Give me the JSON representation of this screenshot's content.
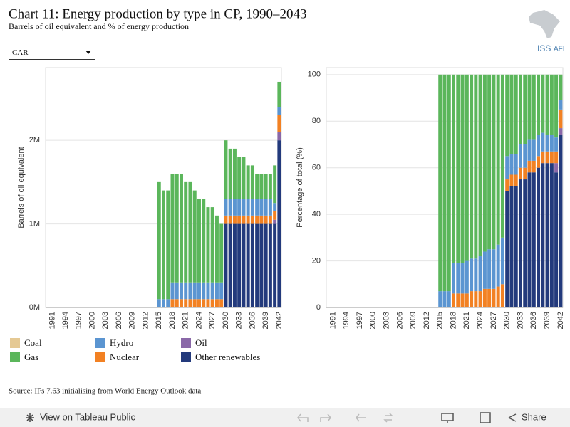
{
  "header": {
    "title": "Chart 11: Energy production by type in CP, 1990–2043",
    "subtitle": "Barrels of oil equivalent and % of energy production",
    "logo": "ISS",
    "logo_suffix": "AFI"
  },
  "filter": {
    "value": "CAR"
  },
  "source": "Source: IFs 7.63 initialising from World Energy Outlook data",
  "footer": {
    "view": "View on Tableau Public",
    "share": "Share"
  },
  "chart_data": [
    {
      "type": "stacked_bar",
      "y_label": "Barrels of oil equivalent",
      "categories": [
        null,
        "1991",
        null,
        null,
        "1994",
        null,
        null,
        "1997",
        null,
        null,
        "2000",
        null,
        null,
        "2003",
        null,
        null,
        "2006",
        null,
        null,
        "2009",
        null,
        null,
        "2012",
        null,
        null,
        "2015",
        null,
        null,
        "2018",
        null,
        null,
        "2021",
        null,
        null,
        "2024",
        null,
        null,
        "2027",
        null,
        null,
        "2030",
        null,
        null,
        "2033",
        null,
        null,
        "2036",
        null,
        null,
        "2039",
        null,
        null,
        "2042"
      ],
      "ylim": [
        0,
        2870000
      ],
      "yticks": [
        {
          "value": 0,
          "label": "0M"
        },
        {
          "value": 1000000,
          "label": "1M"
        },
        {
          "value": 2000000,
          "label": "2M"
        }
      ],
      "grid": true,
      "series": [
        {
          "name": "Coal",
          "color": "#e5c994",
          "values": [
            null,
            null,
            null,
            null,
            null,
            null,
            null,
            null,
            null,
            null,
            null,
            null,
            null,
            null,
            null,
            null,
            null,
            null,
            null,
            null,
            null,
            null,
            null,
            null,
            null,
            0,
            0,
            0,
            0,
            0,
            0,
            0,
            0,
            0,
            0,
            0,
            0,
            0,
            0,
            0,
            0,
            0,
            0,
            0,
            0,
            0,
            0,
            0,
            0,
            0,
            0,
            0,
            0
          ]
        },
        {
          "name": "Gas",
          "color": "#5bb65b",
          "values": [
            null,
            null,
            null,
            null,
            null,
            null,
            null,
            null,
            null,
            null,
            null,
            null,
            null,
            null,
            null,
            null,
            null,
            null,
            null,
            null,
            null,
            null,
            null,
            null,
            null,
            1400000,
            1300000,
            1300000,
            1300000,
            1300000,
            1300000,
            1200000,
            1200000,
            1100000,
            1000000,
            1000000,
            900000,
            900000,
            800000,
            700000,
            700000,
            600000,
            600000,
            500000,
            500000,
            400000,
            400000,
            300000,
            300000,
            300000,
            300000,
            450000,
            300000
          ]
        },
        {
          "name": "Hydro",
          "color": "#5b95d1",
          "values": [
            null,
            null,
            null,
            null,
            null,
            null,
            null,
            null,
            null,
            null,
            null,
            null,
            null,
            null,
            null,
            null,
            null,
            null,
            null,
            null,
            null,
            null,
            null,
            null,
            null,
            100000,
            100000,
            100000,
            200000,
            200000,
            200000,
            200000,
            200000,
            200000,
            200000,
            200000,
            200000,
            200000,
            200000,
            200000,
            200000,
            200000,
            200000,
            200000,
            200000,
            200000,
            200000,
            200000,
            200000,
            200000,
            200000,
            100000,
            100000
          ]
        },
        {
          "name": "Nuclear",
          "color": "#f28123",
          "values": [
            null,
            null,
            null,
            null,
            null,
            null,
            null,
            null,
            null,
            null,
            null,
            null,
            null,
            null,
            null,
            null,
            null,
            null,
            null,
            null,
            null,
            null,
            null,
            null,
            null,
            0,
            0,
            0,
            100000,
            100000,
            100000,
            100000,
            100000,
            100000,
            100000,
            100000,
            100000,
            100000,
            100000,
            100000,
            100000,
            100000,
            100000,
            100000,
            100000,
            100000,
            100000,
            100000,
            100000,
            100000,
            100000,
            100000,
            200000
          ]
        },
        {
          "name": "Oil",
          "color": "#8a68a8",
          "values": [
            null,
            null,
            null,
            null,
            null,
            null,
            null,
            null,
            null,
            null,
            null,
            null,
            null,
            null,
            null,
            null,
            null,
            null,
            null,
            null,
            null,
            null,
            null,
            null,
            null,
            0,
            0,
            0,
            0,
            0,
            0,
            0,
            0,
            0,
            0,
            0,
            0,
            0,
            0,
            0,
            0,
            0,
            0,
            0,
            0,
            0,
            0,
            0,
            0,
            0,
            0,
            50000,
            100000
          ]
        },
        {
          "name": "Other renewables",
          "color": "#233a7c",
          "values": [
            null,
            null,
            null,
            null,
            null,
            null,
            null,
            null,
            null,
            null,
            null,
            null,
            null,
            null,
            null,
            null,
            null,
            null,
            null,
            null,
            null,
            null,
            null,
            null,
            null,
            0,
            0,
            0,
            0,
            0,
            0,
            0,
            0,
            0,
            0,
            0,
            0,
            0,
            0,
            0,
            1000000,
            1000000,
            1000000,
            1000000,
            1000000,
            1000000,
            1000000,
            1000000,
            1000000,
            1000000,
            1000000,
            1000000,
            2000000
          ]
        }
      ]
    },
    {
      "type": "stacked_bar",
      "y_label": "Percentage of total (%)",
      "categories": [
        null,
        "1991",
        null,
        null,
        "1994",
        null,
        null,
        "1997",
        null,
        null,
        "2000",
        null,
        null,
        "2003",
        null,
        null,
        "2006",
        null,
        null,
        "2009",
        null,
        null,
        "2012",
        null,
        null,
        "2015",
        null,
        null,
        "2018",
        null,
        null,
        "2021",
        null,
        null,
        "2024",
        null,
        null,
        "2027",
        null,
        null,
        "2030",
        null,
        null,
        "2033",
        null,
        null,
        "2036",
        null,
        null,
        "2039",
        null,
        null,
        "2042"
      ],
      "ylim": [
        0,
        103
      ],
      "yticks": [
        0,
        20,
        40,
        60,
        80,
        100
      ],
      "grid": true,
      "series": [
        {
          "name": "Coal",
          "color": "#e5c994",
          "values": [
            null,
            null,
            null,
            null,
            null,
            null,
            null,
            null,
            null,
            null,
            null,
            null,
            null,
            null,
            null,
            null,
            null,
            null,
            null,
            null,
            null,
            null,
            null,
            null,
            null,
            0,
            0,
            0,
            0,
            0,
            0,
            0,
            0,
            0,
            0,
            0,
            0,
            0,
            0,
            0,
            0,
            0,
            0,
            0,
            0,
            0,
            0,
            0,
            0,
            0,
            0,
            0,
            0
          ]
        },
        {
          "name": "Gas",
          "color": "#5bb65b",
          "values": [
            null,
            null,
            null,
            null,
            null,
            null,
            null,
            null,
            null,
            null,
            null,
            null,
            null,
            null,
            null,
            null,
            null,
            null,
            null,
            null,
            null,
            null,
            null,
            null,
            null,
            93,
            93,
            93,
            81,
            81,
            81,
            80,
            79,
            79,
            78,
            76,
            75,
            75,
            73,
            70,
            35,
            34,
            34,
            30,
            30,
            28,
            28,
            26,
            25,
            26,
            26,
            27,
            11
          ]
        },
        {
          "name": "Hydro",
          "color": "#5b95d1",
          "values": [
            null,
            null,
            null,
            null,
            null,
            null,
            null,
            null,
            null,
            null,
            null,
            null,
            null,
            null,
            null,
            null,
            null,
            null,
            null,
            null,
            null,
            null,
            null,
            null,
            null,
            7,
            7,
            7,
            13,
            13,
            13,
            14,
            14,
            14,
            15,
            16,
            17,
            17,
            18,
            20,
            10,
            9,
            9,
            10,
            10,
            9,
            9,
            9,
            8,
            7,
            7,
            6,
            4
          ]
        },
        {
          "name": "Nuclear",
          "color": "#f28123",
          "values": [
            null,
            null,
            null,
            null,
            null,
            null,
            null,
            null,
            null,
            null,
            null,
            null,
            null,
            null,
            null,
            null,
            null,
            null,
            null,
            null,
            null,
            null,
            null,
            null,
            null,
            0,
            0,
            0,
            6,
            6,
            6,
            6,
            7,
            7,
            7,
            8,
            8,
            8,
            9,
            10,
            5,
            5,
            5,
            5,
            5,
            5,
            5,
            5,
            5,
            5,
            5,
            5,
            8
          ]
        },
        {
          "name": "Oil",
          "color": "#8a68a8",
          "values": [
            null,
            null,
            null,
            null,
            null,
            null,
            null,
            null,
            null,
            null,
            null,
            null,
            null,
            null,
            null,
            null,
            null,
            null,
            null,
            null,
            null,
            null,
            null,
            null,
            null,
            0,
            0,
            0,
            0,
            0,
            0,
            0,
            0,
            0,
            0,
            0,
            0,
            0,
            0,
            0,
            0,
            0,
            0,
            0,
            0,
            0,
            0,
            0,
            0,
            0,
            0,
            4,
            3
          ]
        },
        {
          "name": "Other renewables",
          "color": "#233a7c",
          "values": [
            null,
            null,
            null,
            null,
            null,
            null,
            null,
            null,
            null,
            null,
            null,
            null,
            null,
            null,
            null,
            null,
            null,
            null,
            null,
            null,
            null,
            null,
            null,
            null,
            null,
            0,
            0,
            0,
            0,
            0,
            0,
            0,
            0,
            0,
            0,
            0,
            0,
            0,
            0,
            0,
            50,
            52,
            52,
            55,
            55,
            58,
            58,
            60,
            62,
            62,
            62,
            58,
            74
          ]
        }
      ]
    }
  ]
}
